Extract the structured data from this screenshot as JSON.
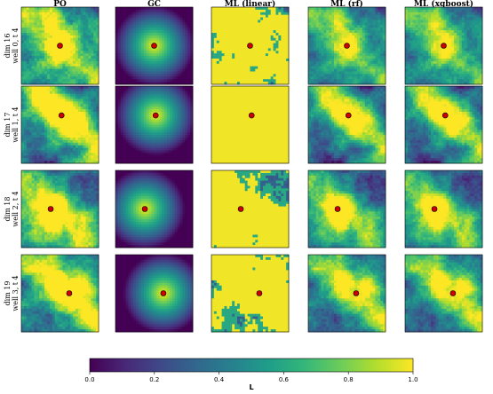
{
  "chart_data": {
    "type": "heatmap",
    "columns": [
      "PO",
      "GC",
      "ML (linear)",
      "ML (rf)",
      "ML (xgboost)"
    ],
    "rows": [
      {
        "label_line1": "dim 16",
        "label_line2": "well 0, t 4",
        "well": {
          "x": 0.5,
          "y": 0.5
        }
      },
      {
        "label_line1": "dim 17",
        "label_line2": "well 1, t 4",
        "well": {
          "x": 0.52,
          "y": 0.38
        }
      },
      {
        "label_line1": "dim 18",
        "label_line2": "well 2, t 4",
        "well": {
          "x": 0.38,
          "y": 0.5
        }
      },
      {
        "label_line1": "dim 19",
        "label_line2": "well 3, t 4",
        "well": {
          "x": 0.62,
          "y": 0.5
        }
      }
    ],
    "colorbar": {
      "label": "L",
      "range": [
        0.0,
        1.0
      ],
      "ticks": [
        "0.0",
        "0.2",
        "0.4",
        "0.6",
        "0.8",
        "1.0"
      ],
      "colormap": "viridis"
    },
    "marker_color": "#cc0000"
  }
}
